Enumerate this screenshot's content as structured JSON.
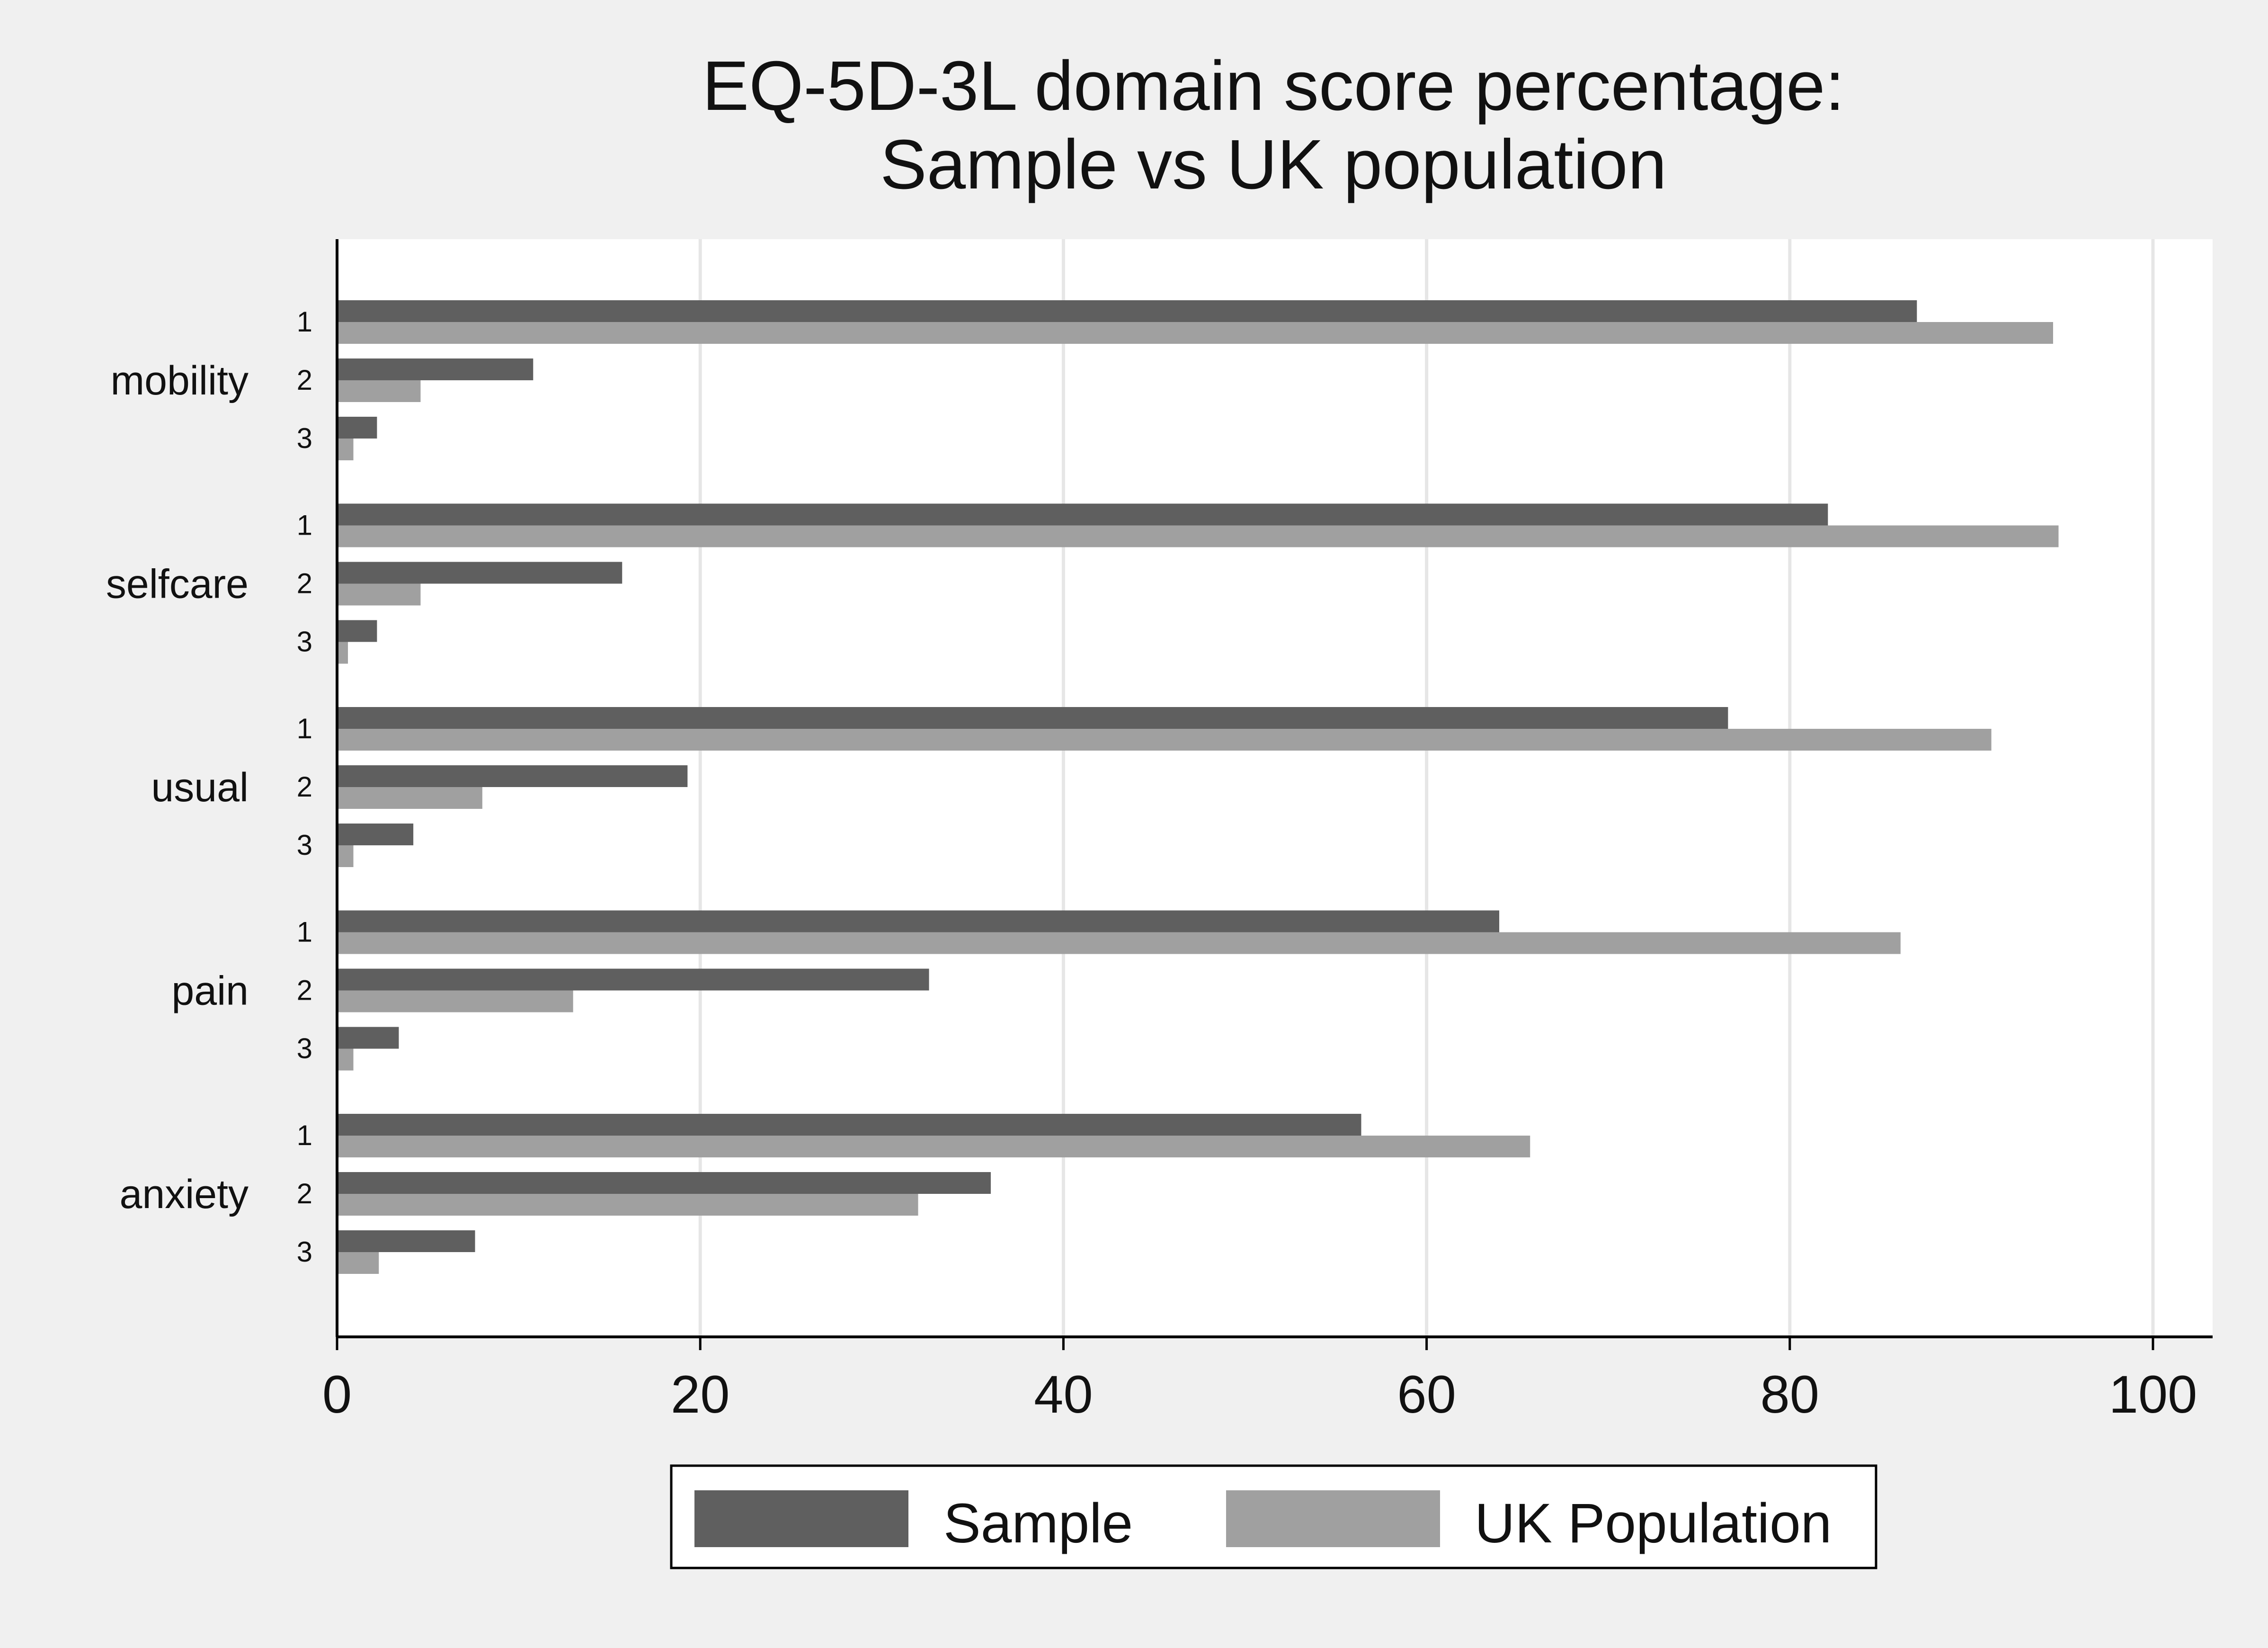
{
  "chart_data": {
    "type": "bar",
    "orientation": "horizontal",
    "title": [
      "EQ-5D-3L domain score percentage:",
      "Sample vs UK population"
    ],
    "groups": [
      "mobility",
      "selfcare",
      "usual",
      "pain",
      "anxiety"
    ],
    "levels": [
      "1",
      "2",
      "3"
    ],
    "series": [
      {
        "name": "Sample",
        "color": "#5f5f5f",
        "values": [
          [
            87.0,
            10.8,
            2.2
          ],
          [
            82.1,
            15.7,
            2.2
          ],
          [
            76.6,
            19.3,
            4.2
          ],
          [
            64.0,
            32.6,
            3.4
          ],
          [
            56.4,
            36.0,
            7.6
          ]
        ]
      },
      {
        "name": "UK Population",
        "color": "#a0a0a0",
        "values": [
          [
            94.5,
            4.6,
            0.9
          ],
          [
            94.8,
            4.6,
            0.6
          ],
          [
            91.1,
            8.0,
            0.9
          ],
          [
            86.1,
            13.0,
            0.9
          ],
          [
            65.7,
            32.0,
            2.3
          ]
        ]
      }
    ],
    "xlim": [
      0,
      100
    ],
    "xticks": [
      "0",
      "20",
      "40",
      "60",
      "80",
      "100"
    ],
    "grid": true,
    "legend_position": "bottom"
  }
}
